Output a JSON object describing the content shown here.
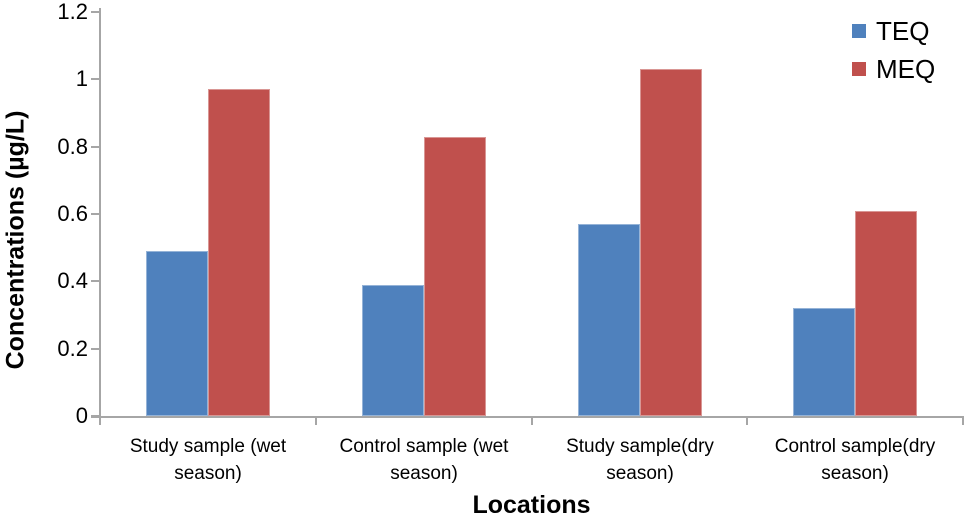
{
  "chart_data": {
    "type": "bar",
    "title": "",
    "xlabel": "Locations",
    "ylabel": "Concentrations (µg/L)",
    "categories": [
      "Study sample (wet season)",
      "Control sample (wet season)",
      "Study sample(dry season)",
      "Control sample(dry season)"
    ],
    "category_label_lines": [
      [
        "Study sample (wet",
        "season)"
      ],
      [
        "Control sample (wet",
        "season)"
      ],
      [
        "Study sample(dry",
        "season)"
      ],
      [
        "Control sample(dry",
        "season)"
      ]
    ],
    "series": [
      {
        "name": "TEQ",
        "color": "#4F81BD",
        "edge_color": "#95B3D7",
        "values": [
          0.49,
          0.39,
          0.57,
          0.32
        ]
      },
      {
        "name": "MEQ",
        "color": "#C0504D",
        "edge_color": "#D99694",
        "values": [
          0.97,
          0.83,
          1.03,
          0.61
        ]
      }
    ],
    "ylim": [
      0,
      1.2
    ],
    "yticks": [
      {
        "value": 0,
        "label": "0"
      },
      {
        "value": 0.2,
        "label": "0.2"
      },
      {
        "value": 0.4,
        "label": "0.4"
      },
      {
        "value": 0.6,
        "label": "0.6"
      },
      {
        "value": 0.8,
        "label": "0.8"
      },
      {
        "value": 1,
        "label": "1"
      },
      {
        "value": 1.2,
        "label": "1.2"
      }
    ],
    "grid": false,
    "legend": {
      "position": "top-right",
      "entries": [
        "TEQ",
        "MEQ"
      ]
    },
    "axis_color": "#A6A6A6",
    "text_color": "#000000"
  }
}
